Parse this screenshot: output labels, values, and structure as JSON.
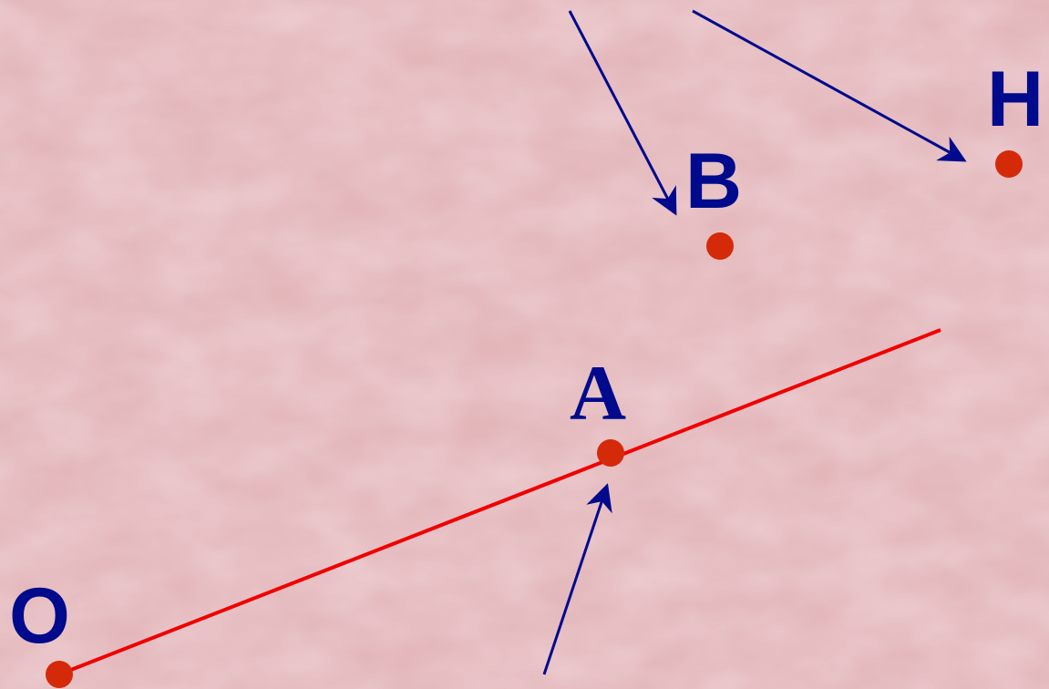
{
  "points": [
    {
      "label": "O"
    },
    {
      "label": "A"
    },
    {
      "label": "B"
    },
    {
      "label": "H"
    }
  ]
}
